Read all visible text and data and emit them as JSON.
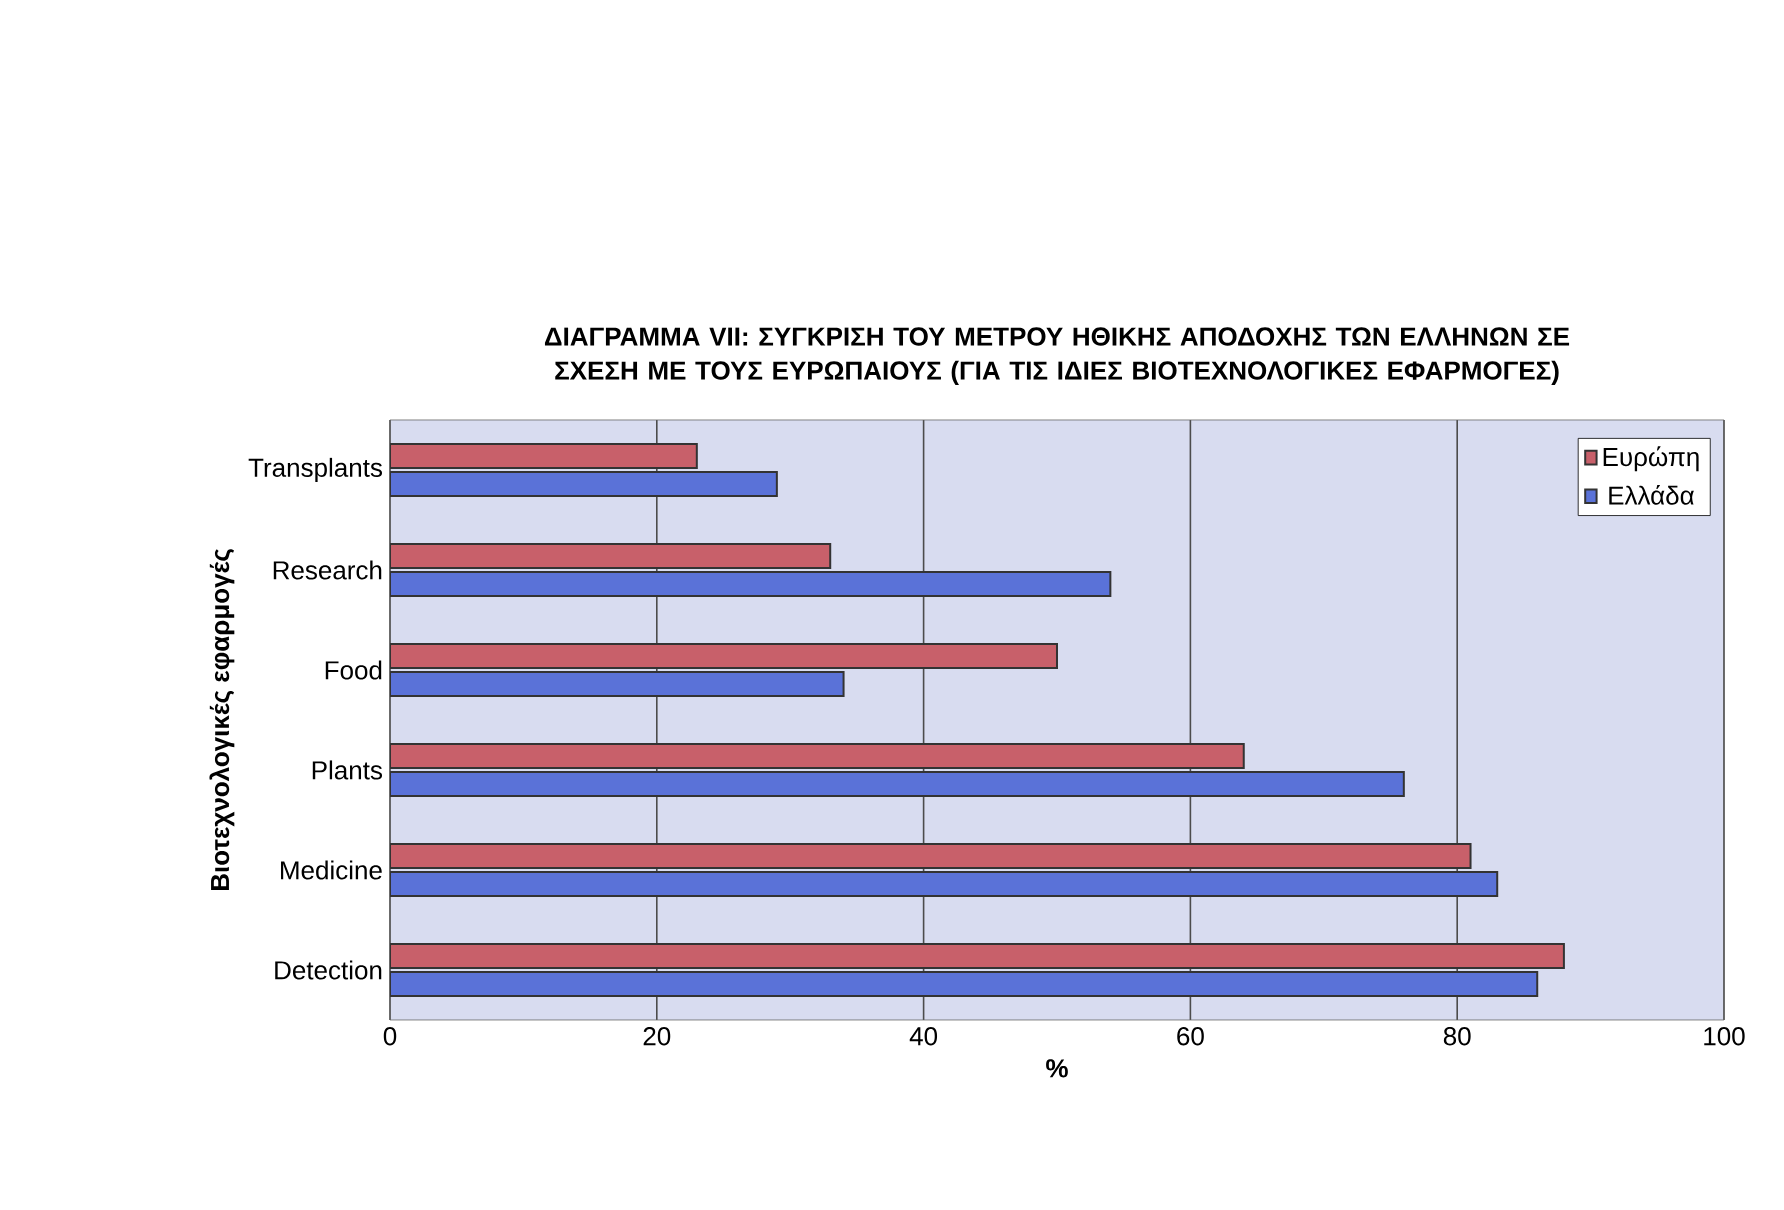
{
  "chart_data": {
    "type": "bar",
    "orientation": "horizontal",
    "title": "ΔΙΑΓΡΑΜΜΑ VII: ΣΥΓΚΡΙΣΗ ΤΟΥ ΜΕΤΡΟΥ ΗΘΙΚΗΣ ΑΠΟΔΟΧΗΣ ΤΩΝ ΕΛΛΗΝΩΝ ΣΕ ΣΧΕΣΗ ΜΕ ΤΟΥΣ ΕΥΡΩΠΑΙΟΥΣ (ΓΙΑ ΤΙΣ ΙΔΙΕΣ ΒΙΟΤΕΧΝΟΛΟΓΙΚΕΣ ΕΦΑΡΜΟΓΕΣ)",
    "xlabel": "%",
    "ylabel": "Βιοτεχνολογικές εφαρμογές",
    "categories": [
      "Transplants",
      "Research",
      "Food",
      "Plants",
      "Medicine",
      "Detection"
    ],
    "series": [
      {
        "name": "Ευρώπη",
        "color": "#c8606a",
        "values": [
          23,
          33,
          50,
          64,
          81,
          88
        ]
      },
      {
        "name": "Ελλάδα",
        "color": "#5a72d8",
        "values": [
          29,
          54,
          34,
          76,
          83,
          86
        ]
      }
    ],
    "xlim": [
      0,
      100
    ],
    "xticks": [
      0,
      20,
      40,
      60,
      80,
      100
    ],
    "grid": "x",
    "legend": "top right"
  }
}
